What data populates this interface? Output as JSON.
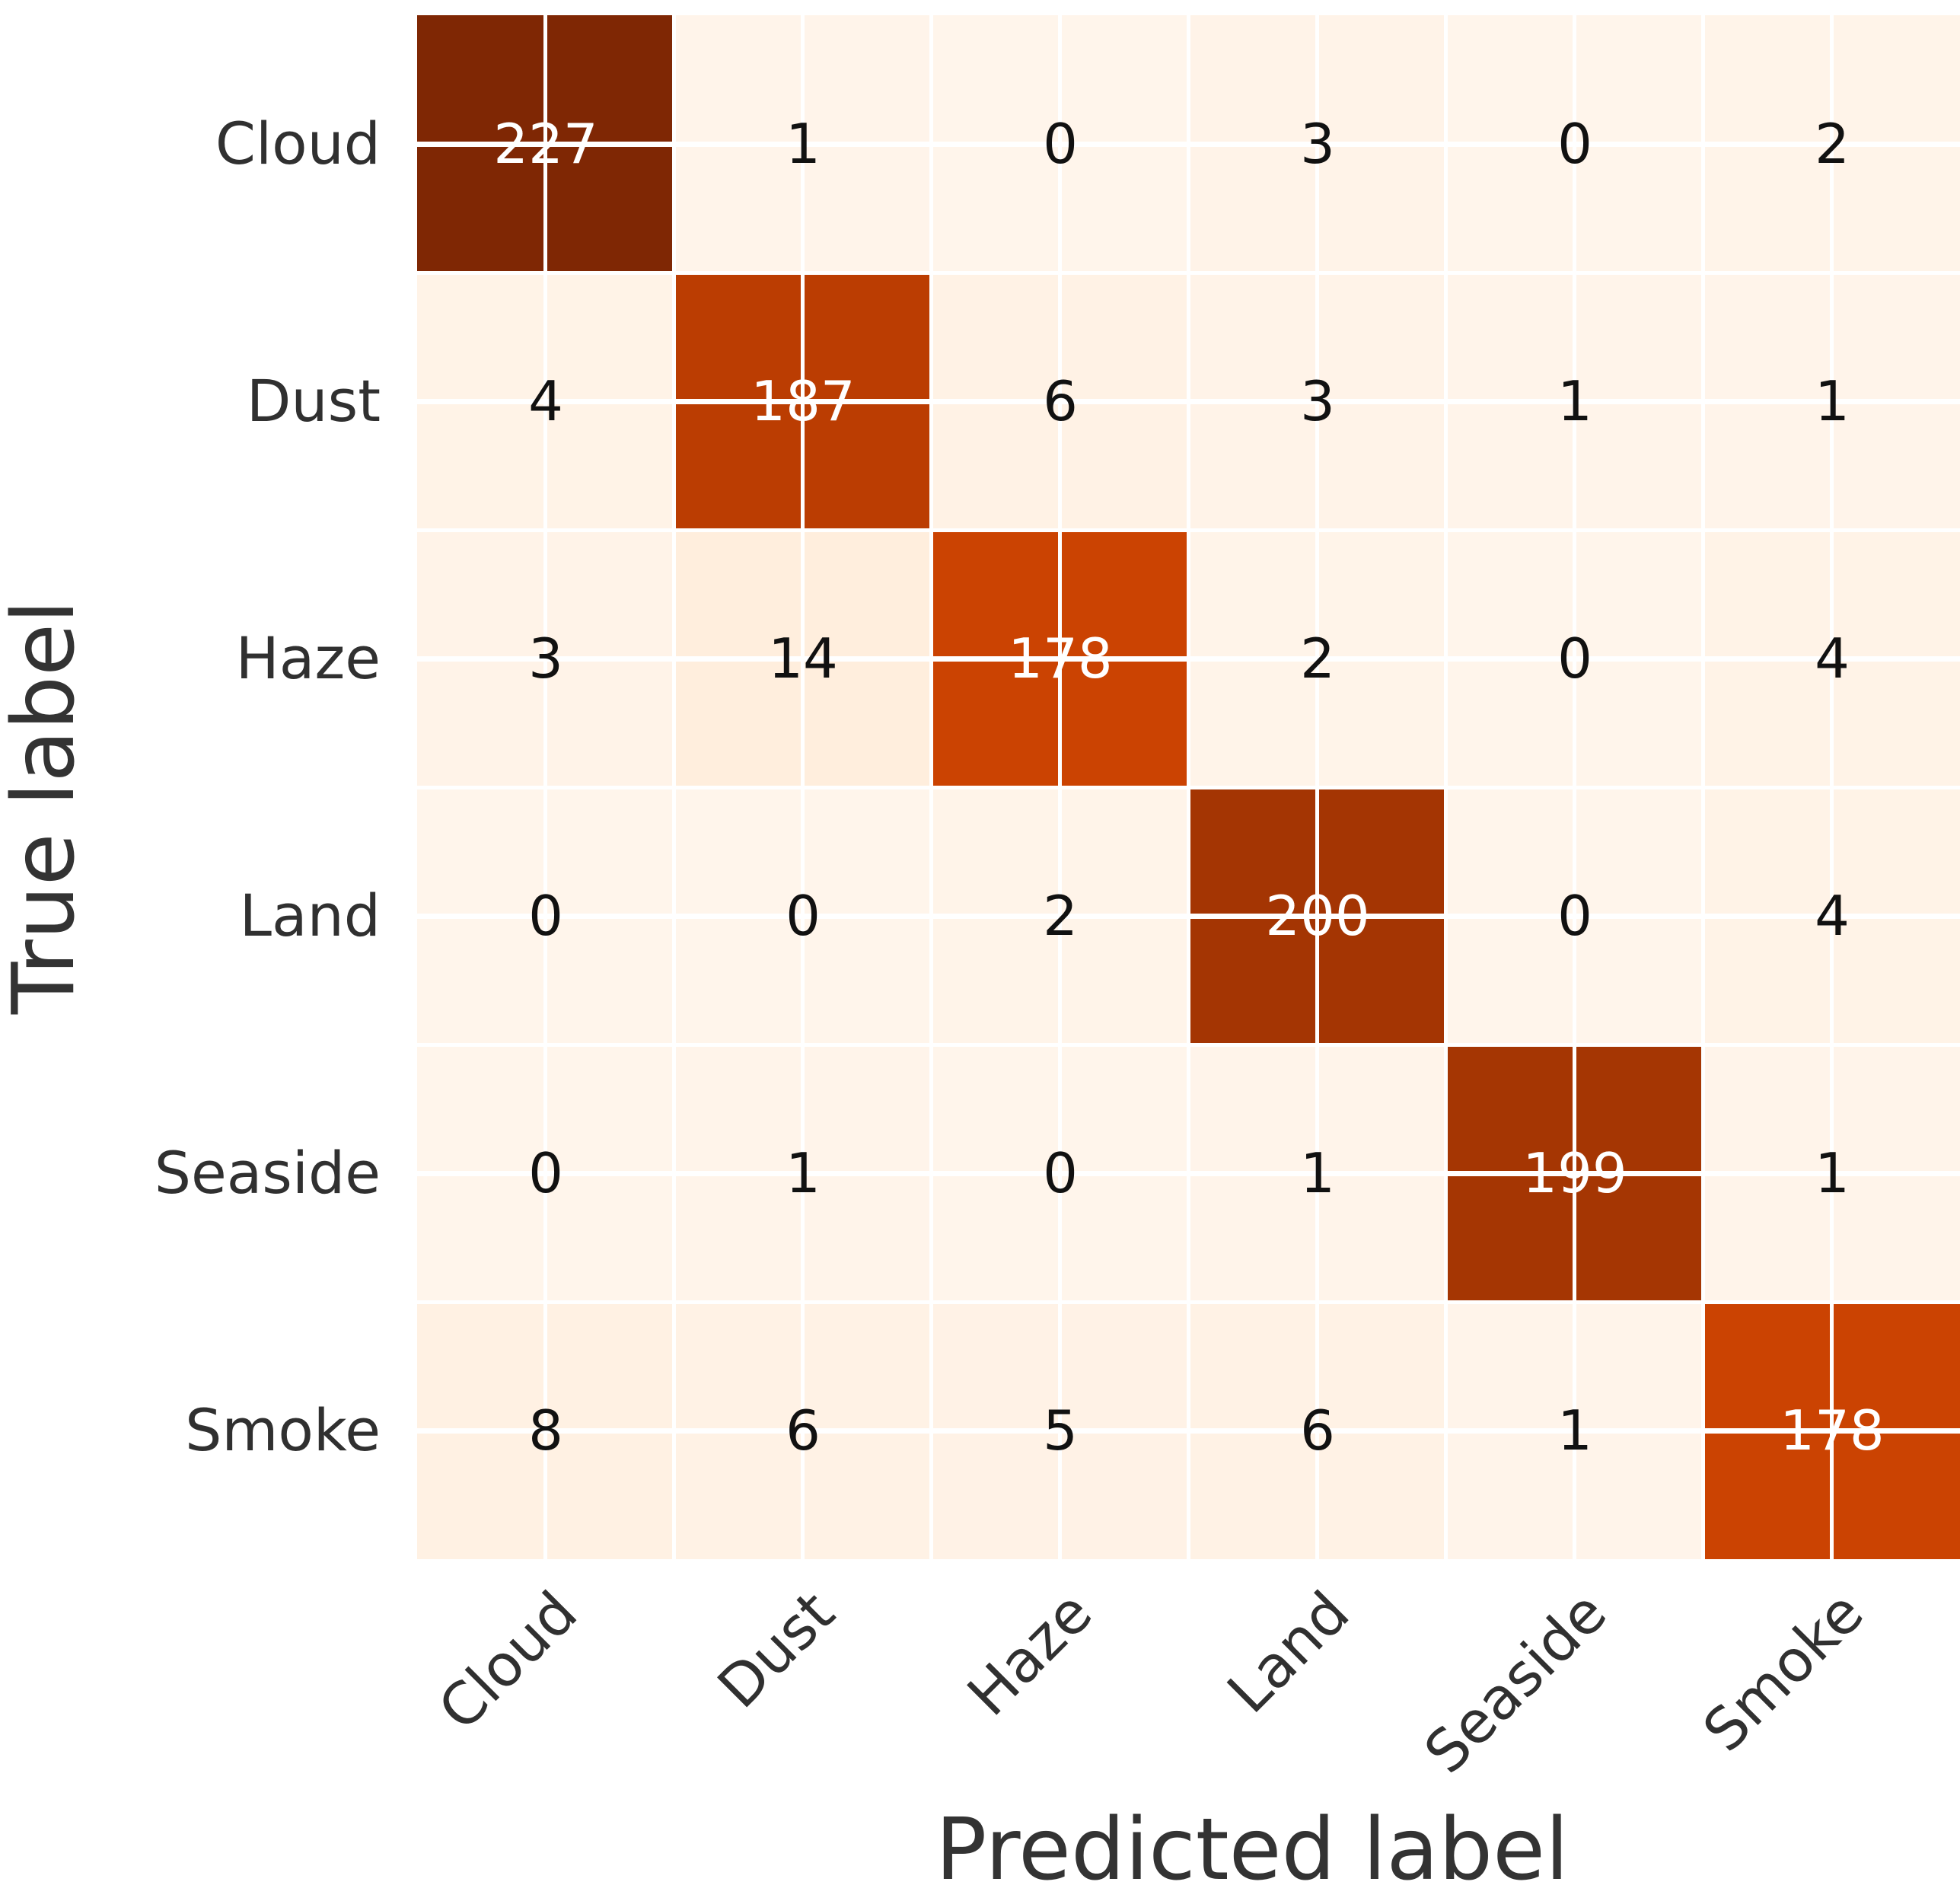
{
  "chart_data": {
    "type": "heatmap",
    "x_axis_label": "Predicted label",
    "y_axis_label": "True label",
    "categories": [
      "Cloud",
      "Dust",
      "Haze",
      "Land",
      "Seaside",
      "Smoke"
    ],
    "x_tick_labels": [
      "Cloud",
      "Dust",
      "Haze",
      "Land",
      "Seaside",
      "Smoke"
    ],
    "y_tick_labels": [
      "Cloud",
      "Dust",
      "Haze",
      "Land",
      "Seaside",
      "Smoke"
    ],
    "matrix": [
      [
        227,
        1,
        0,
        3,
        0,
        2
      ],
      [
        4,
        187,
        6,
        3,
        1,
        1
      ],
      [
        3,
        14,
        178,
        2,
        0,
        4
      ],
      [
        0,
        0,
        2,
        200,
        0,
        4
      ],
      [
        0,
        1,
        0,
        1,
        199,
        1
      ],
      [
        8,
        6,
        5,
        6,
        1,
        178
      ]
    ],
    "vmin": 0,
    "vmax": 227,
    "colormap": {
      "name": "Oranges",
      "stops": [
        [
          0.0,
          "#fff5eb"
        ],
        [
          0.125,
          "#fee6ce"
        ],
        [
          0.25,
          "#fdd0a2"
        ],
        [
          0.375,
          "#fdae6b"
        ],
        [
          0.5,
          "#fd8d3c"
        ],
        [
          0.625,
          "#f16913"
        ],
        [
          0.75,
          "#d94801"
        ],
        [
          0.875,
          "#a63603"
        ],
        [
          1.0,
          "#7f2704"
        ]
      ]
    },
    "grid_on": true,
    "grid_line_color": "#ffffff",
    "annotation_color_on_dark": "#ffffff",
    "annotation_color_on_light": "#111111",
    "background_color": "#ffffff",
    "legend": "none"
  }
}
